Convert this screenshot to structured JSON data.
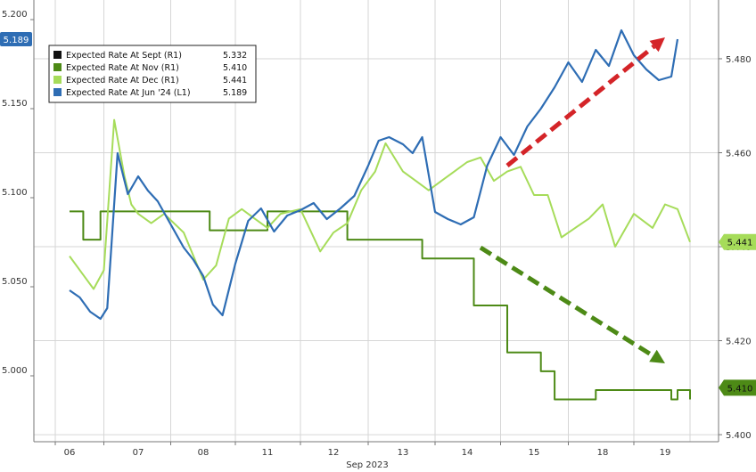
{
  "chart_data": {
    "type": "line",
    "xlabel": "Sep 2023",
    "x_ticks": [
      "06",
      "07",
      "08",
      "11",
      "12",
      "13",
      "14",
      "15",
      "18",
      "19"
    ],
    "y_left": {
      "ticks": [
        5.0,
        5.05,
        5.1,
        5.15,
        5.2
      ],
      "ylim": [
        4.963,
        5.211
      ]
    },
    "y_right": {
      "ticks": [
        5.4,
        5.42,
        5.44,
        5.46,
        5.48
      ],
      "ylim": [
        5.3985,
        5.4925
      ]
    },
    "grid": true,
    "legend_position": "top-left",
    "legend": [
      {
        "label": "Expected Rate At Sept (R1)",
        "value": "5.332",
        "color": "#111111"
      },
      {
        "label": "Expected Rate At Nov (R1)",
        "value": "5.410",
        "color": "#4d8a16"
      },
      {
        "label": "Expected Rate At Dec (R1)",
        "value": "5.441",
        "color": "#a6dc5a"
      },
      {
        "label": "Expected Rate At Jun '24 (L1)",
        "value": "5.189",
        "color": "#2e6db4"
      }
    ],
    "axis_badges": [
      {
        "axis": "left",
        "value": 5.189,
        "text": "5.189",
        "color": "#2e6db4"
      },
      {
        "axis": "right",
        "value": 5.441,
        "text": "5.441",
        "color": "#a6dc5a"
      },
      {
        "axis": "right",
        "value": 5.41,
        "text": "5.410",
        "color": "#4d8a16"
      }
    ],
    "series": [
      {
        "name": "Expected Rate At Nov (R1)",
        "axis": "right",
        "color": "#4d8a16",
        "step": true,
        "x": [
          0,
          0.15,
          0.2,
          0.35,
          0.45,
          0.55,
          0.75,
          1.0,
          1.3,
          1.6,
          1.9,
          2.1,
          2.3,
          2.6,
          3.0,
          3.4,
          3.8,
          4.2,
          4.4,
          4.6,
          4.9,
          5.1,
          5.3,
          5.6,
          5.9,
          6.1,
          6.3,
          6.6,
          6.9,
          7.1,
          7.3,
          7.6,
          7.9,
          8.1,
          8.4,
          8.8,
          9.1,
          9.2,
          9.4
        ],
        "y": [
          5.4475,
          5.4475,
          5.4415,
          5.4415,
          5.4475,
          5.4475,
          5.4475,
          5.4475,
          5.4475,
          5.4475,
          5.4475,
          5.4435,
          5.4435,
          5.4435,
          5.4475,
          5.4475,
          5.4475,
          5.4415,
          5.4415,
          5.4415,
          5.4415,
          5.4415,
          5.4375,
          5.4375,
          5.4375,
          5.4275,
          5.4275,
          5.4175,
          5.4175,
          5.4135,
          5.4075,
          5.4075,
          5.4095,
          5.4095,
          5.4095,
          5.4095,
          5.4075,
          5.4095,
          5.4075
        ]
      },
      {
        "name": "Expected Rate At Dec (R1)",
        "axis": "right",
        "color": "#a6dc5a",
        "x": [
          0,
          0.2,
          0.35,
          0.5,
          0.65,
          0.8,
          0.9,
          1.0,
          1.2,
          1.4,
          1.7,
          2.0,
          2.2,
          2.4,
          2.6,
          2.8,
          3.0,
          3.2,
          3.5,
          3.8,
          4.0,
          4.2,
          4.4,
          4.6,
          4.75,
          5.0,
          5.2,
          5.4,
          5.6,
          5.8,
          6.0,
          6.2,
          6.4,
          6.6,
          6.8,
          7.0,
          7.2,
          7.4,
          7.6,
          7.8,
          8.0,
          8.2,
          8.5,
          8.8,
          9.0,
          9.2,
          9.4
        ],
        "y": [
          5.438,
          5.434,
          5.431,
          5.435,
          5.467,
          5.455,
          5.449,
          5.447,
          5.445,
          5.447,
          5.443,
          5.433,
          5.436,
          5.446,
          5.448,
          5.446,
          5.444,
          5.447,
          5.448,
          5.439,
          5.443,
          5.445,
          5.452,
          5.456,
          5.462,
          5.456,
          5.454,
          5.452,
          5.454,
          5.456,
          5.458,
          5.459,
          5.454,
          5.456,
          5.457,
          5.451,
          5.451,
          5.442,
          5.444,
          5.446,
          5.449,
          5.44,
          5.447,
          5.444,
          5.449,
          5.448,
          5.441
        ]
      },
      {
        "name": "Expected Rate At Jun '24 (L1)",
        "axis": "left",
        "color": "#2e6db4",
        "x": [
          0,
          0.15,
          0.3,
          0.45,
          0.55,
          0.7,
          0.85,
          1.0,
          1.15,
          1.3,
          1.5,
          1.7,
          1.85,
          2.0,
          2.15,
          2.3,
          2.5,
          2.7,
          2.9,
          3.1,
          3.3,
          3.5,
          3.7,
          3.9,
          4.1,
          4.3,
          4.5,
          4.65,
          4.8,
          5.0,
          5.15,
          5.3,
          5.5,
          5.7,
          5.9,
          6.1,
          6.3,
          6.5,
          6.7,
          6.9,
          7.1,
          7.3,
          7.5,
          7.7,
          7.9,
          8.1,
          8.3,
          8.5,
          8.7,
          8.9,
          9.1,
          9.2
        ],
        "y": [
          5.048,
          5.044,
          5.036,
          5.032,
          5.038,
          5.125,
          5.102,
          5.112,
          5.104,
          5.098,
          5.085,
          5.072,
          5.065,
          5.056,
          5.04,
          5.034,
          5.063,
          5.087,
          5.094,
          5.081,
          5.09,
          5.093,
          5.097,
          5.088,
          5.094,
          5.101,
          5.118,
          5.132,
          5.134,
          5.13,
          5.125,
          5.134,
          5.092,
          5.088,
          5.085,
          5.089,
          5.118,
          5.134,
          5.124,
          5.14,
          5.15,
          5.162,
          5.176,
          5.165,
          5.183,
          5.174,
          5.194,
          5.18,
          5.172,
          5.166,
          5.168,
          5.189
        ]
      }
    ],
    "annotations": [
      {
        "type": "arrow",
        "axis": "left",
        "color": "#d42428",
        "from": [
          6.6,
          5.118
        ],
        "to": [
          9.0,
          5.19
        ]
      },
      {
        "type": "arrow",
        "axis": "left",
        "color": "#4d8a16",
        "from": [
          6.2,
          5.072
        ],
        "to": [
          9.0,
          5.007
        ]
      }
    ]
  }
}
